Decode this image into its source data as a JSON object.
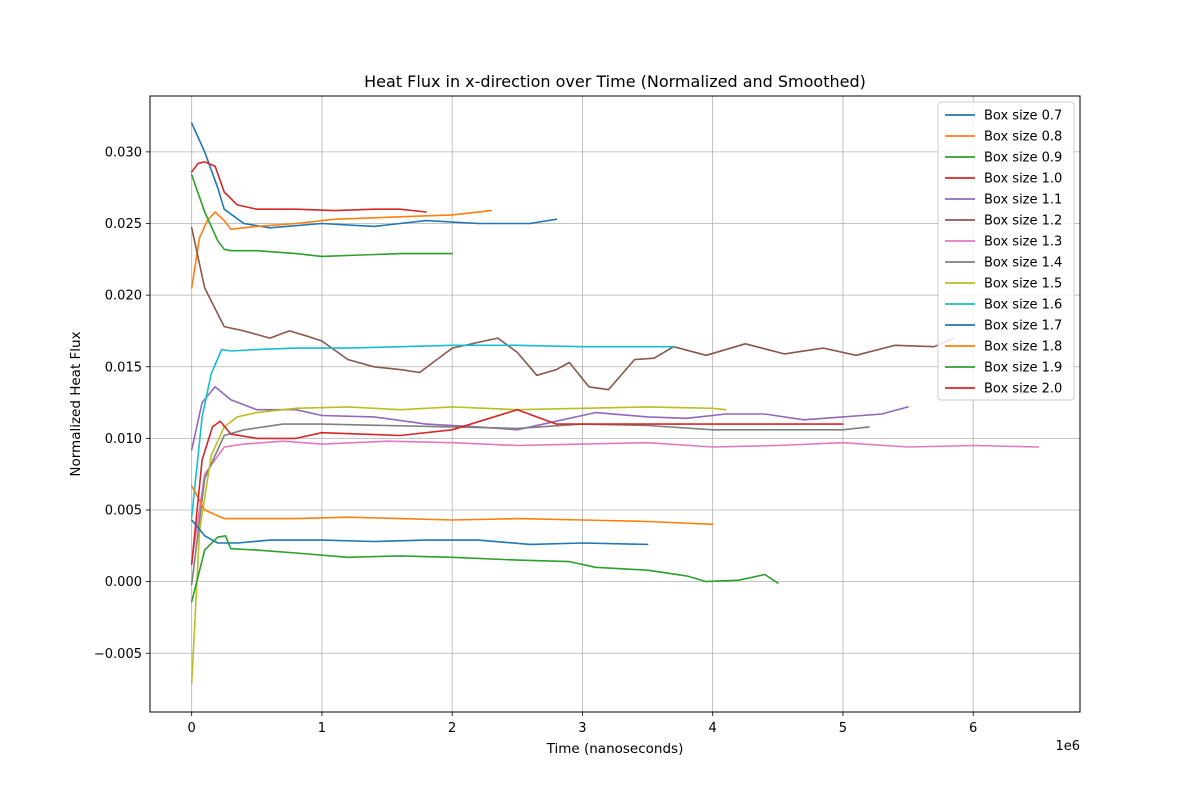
{
  "chart_data": {
    "type": "line",
    "title": "Heat Flux in x-direction over Time (Normalized and Smoothed)",
    "xlabel": "Time (nanoseconds)",
    "ylabel": "Normalized Heat Flux",
    "x_multiplier_label": "1e6",
    "x_scale": 1000000,
    "xlim": [
      -320000,
      6820000
    ],
    "ylim": [
      -0.0091,
      0.0339
    ],
    "x_ticks": [
      0,
      1,
      2,
      3,
      4,
      5,
      6
    ],
    "x_tick_labels": [
      "0",
      "1",
      "2",
      "3",
      "4",
      "5",
      "6"
    ],
    "y_ticks": [
      -0.005,
      0.0,
      0.005,
      0.01,
      0.015,
      0.02,
      0.025,
      0.03
    ],
    "y_tick_labels": [
      "−0.005",
      "0.000",
      "0.005",
      "0.010",
      "0.015",
      "0.020",
      "0.025",
      "0.030"
    ],
    "grid": true,
    "legend_position": "top-right",
    "series": [
      {
        "name": "Box size 0.7",
        "color": "#1f77b4",
        "x": [
          0,
          100000,
          200000,
          250000,
          400000,
          600000,
          1000000,
          1400000,
          1800000,
          2200000,
          2600000,
          2800000
        ],
        "y": [
          0.032,
          0.03,
          0.0275,
          0.026,
          0.025,
          0.0247,
          0.025,
          0.0248,
          0.0252,
          0.025,
          0.025,
          0.0253
        ]
      },
      {
        "name": "Box size 0.8",
        "color": "#ff7f0e",
        "x": [
          0,
          60000,
          120000,
          180000,
          250000,
          300000,
          500000,
          800000,
          1100000,
          1400000,
          1700000,
          2000000,
          2300000
        ],
        "y": [
          0.0205,
          0.024,
          0.0252,
          0.0258,
          0.0252,
          0.0246,
          0.0248,
          0.025,
          0.0253,
          0.0254,
          0.0255,
          0.0256,
          0.0259
        ]
      },
      {
        "name": "Box size 0.9",
        "color": "#2ca02c",
        "x": [
          0,
          100000,
          200000,
          250000,
          300000,
          500000,
          800000,
          1000000,
          1300000,
          1600000,
          2000000
        ],
        "y": [
          0.0284,
          0.0258,
          0.0238,
          0.0232,
          0.0231,
          0.0231,
          0.0229,
          0.0227,
          0.0228,
          0.0229,
          0.0229
        ]
      },
      {
        "name": "Box size 1.0",
        "color": "#d62728",
        "x": [
          0,
          50000,
          100000,
          180000,
          250000,
          350000,
          500000,
          800000,
          1100000,
          1400000,
          1600000,
          1800000
        ],
        "y": [
          0.0286,
          0.0292,
          0.0293,
          0.029,
          0.0272,
          0.0263,
          0.026,
          0.026,
          0.0259,
          0.026,
          0.026,
          0.0258
        ]
      },
      {
        "name": "Box size 1.1",
        "color": "#9467bd",
        "x": [
          0,
          80000,
          180000,
          300000,
          500000,
          800000,
          1000000,
          1400000,
          1800000,
          2200000,
          2500000,
          2800000,
          3100000,
          3500000,
          3800000,
          4100000,
          4400000,
          4700000,
          5000000,
          5300000,
          5500000
        ],
        "y": [
          0.0092,
          0.0125,
          0.0136,
          0.0127,
          0.012,
          0.012,
          0.0116,
          0.0115,
          0.011,
          0.0108,
          0.0106,
          0.0112,
          0.0118,
          0.0115,
          0.0114,
          0.0117,
          0.0117,
          0.0113,
          0.0115,
          0.0117,
          0.0122
        ]
      },
      {
        "name": "Box size 1.2",
        "color": "#8c564b",
        "x": [
          0,
          100000,
          250000,
          400000,
          600000,
          750000,
          900000,
          1000000,
          1200000,
          1400000,
          1600000,
          1750000,
          2000000,
          2200000,
          2350000,
          2500000,
          2650000,
          2800000,
          2900000,
          3050000,
          3200000,
          3400000,
          3550000,
          3700000,
          3950000,
          4250000,
          4550000,
          4850000,
          5100000,
          5400000,
          5700000,
          5850000
        ],
        "y": [
          0.0247,
          0.0205,
          0.0178,
          0.0175,
          0.017,
          0.0175,
          0.0171,
          0.0168,
          0.0155,
          0.015,
          0.0148,
          0.0146,
          0.0163,
          0.0167,
          0.017,
          0.016,
          0.0144,
          0.0148,
          0.0153,
          0.0136,
          0.0134,
          0.0155,
          0.0156,
          0.0164,
          0.0158,
          0.0166,
          0.0159,
          0.0163,
          0.0158,
          0.0165,
          0.0164,
          0.017
        ]
      },
      {
        "name": "Box size 1.3",
        "color": "#e377c2",
        "x": [
          0,
          100000,
          250000,
          400000,
          700000,
          1000000,
          1500000,
          2000000,
          2500000,
          3000000,
          3500000,
          4000000,
          4500000,
          5000000,
          5500000,
          6000000,
          6500000
        ],
        "y": [
          0.0014,
          0.0075,
          0.0094,
          0.0096,
          0.0098,
          0.0096,
          0.0098,
          0.0097,
          0.0095,
          0.0096,
          0.0097,
          0.0094,
          0.0095,
          0.0097,
          0.0094,
          0.0095,
          0.0094
        ]
      },
      {
        "name": "Box size 1.4",
        "color": "#7f7f7f",
        "x": [
          0,
          100000,
          250000,
          400000,
          700000,
          1000000,
          1500000,
          2000000,
          2500000,
          3000000,
          3500000,
          4000000,
          4500000,
          5000000,
          5200000
        ],
        "y": [
          -0.0002,
          0.0072,
          0.0102,
          0.0106,
          0.011,
          0.011,
          0.0109,
          0.0108,
          0.0107,
          0.011,
          0.0109,
          0.0106,
          0.0106,
          0.0106,
          0.0108
        ]
      },
      {
        "name": "Box size 1.5",
        "color": "#bcbd22",
        "x": [
          0,
          60000,
          150000,
          250000,
          350000,
          500000,
          800000,
          1200000,
          1600000,
          2000000,
          2500000,
          3000000,
          3500000,
          4000000,
          4100000
        ],
        "y": [
          -0.0071,
          0.0035,
          0.0088,
          0.0108,
          0.0115,
          0.0118,
          0.0121,
          0.0122,
          0.012,
          0.0122,
          0.012,
          0.0121,
          0.0122,
          0.0121,
          0.012
        ]
      },
      {
        "name": "Box size 1.6",
        "color": "#17becf",
        "x": [
          0,
          80000,
          150000,
          230000,
          300000,
          500000,
          800000,
          1200000,
          1600000,
          2000000,
          2500000,
          3000000,
          3500000,
          3700000
        ],
        "y": [
          0.0045,
          0.0115,
          0.0145,
          0.0162,
          0.0161,
          0.0162,
          0.0163,
          0.0163,
          0.0164,
          0.0165,
          0.0165,
          0.0164,
          0.0164,
          0.0164
        ]
      },
      {
        "name": "Box size 1.7",
        "color": "#1f77b4",
        "x": [
          0,
          100000,
          200000,
          350000,
          600000,
          1000000,
          1400000,
          1800000,
          2200000,
          2600000,
          3000000,
          3500000
        ],
        "y": [
          0.0043,
          0.0032,
          0.0027,
          0.0027,
          0.0029,
          0.0029,
          0.0028,
          0.0029,
          0.0029,
          0.0026,
          0.0027,
          0.0026
        ]
      },
      {
        "name": "Box size 1.8",
        "color": "#ff7f0e",
        "x": [
          0,
          100000,
          250000,
          500000,
          800000,
          1200000,
          1600000,
          2000000,
          2500000,
          3000000,
          3500000,
          4000000
        ],
        "y": [
          0.0067,
          0.005,
          0.0044,
          0.0044,
          0.0044,
          0.0045,
          0.0044,
          0.0043,
          0.0044,
          0.0043,
          0.0042,
          0.004
        ]
      },
      {
        "name": "Box size 1.9",
        "color": "#2ca02c",
        "x": [
          0,
          100000,
          200000,
          260000,
          300000,
          500000,
          800000,
          1200000,
          1600000,
          2000000,
          2500000,
          2900000,
          3100000,
          3500000,
          3800000,
          3950000,
          4200000,
          4400000,
          4500000
        ],
        "y": [
          -0.0014,
          0.0022,
          0.0031,
          0.0032,
          0.0023,
          0.0022,
          0.002,
          0.0017,
          0.0018,
          0.0017,
          0.0015,
          0.0014,
          0.001,
          0.0008,
          0.0004,
          0.0,
          0.0001,
          0.0005,
          -0.0001
        ]
      },
      {
        "name": "Box size 2.0",
        "color": "#d62728",
        "x": [
          0,
          80000,
          160000,
          220000,
          300000,
          500000,
          800000,
          1000000,
          1300000,
          1600000,
          2000000,
          2500000,
          2800000,
          3200000,
          3600000,
          4000000,
          4500000,
          5000000
        ],
        "y": [
          0.0012,
          0.0085,
          0.0108,
          0.0112,
          0.0103,
          0.01,
          0.01,
          0.0104,
          0.0103,
          0.0102,
          0.0106,
          0.012,
          0.011,
          0.011,
          0.011,
          0.011,
          0.011,
          0.011
        ]
      }
    ]
  }
}
